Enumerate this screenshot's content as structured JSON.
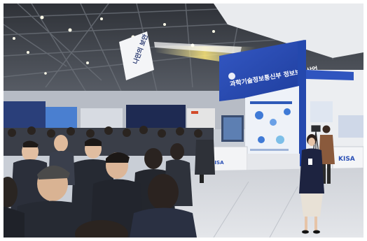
{
  "scene": {
    "booth_banner_text": "과학기술정보통신부 정보보호산업",
    "side_banner_text": "나만의 보안",
    "booth_logo_text": "KISA",
    "booth_counter_text": "KISA",
    "colors": {
      "ceiling": "#3a3d44",
      "booth_blue": "#2a4fb5",
      "booth_white": "#f2f3f5",
      "carpet": "#d9dbe0",
      "presenter_jacket": "#1d2340",
      "presenter_skirt": "#e8e1d6",
      "crowd_dark": "#23262d"
    }
  }
}
